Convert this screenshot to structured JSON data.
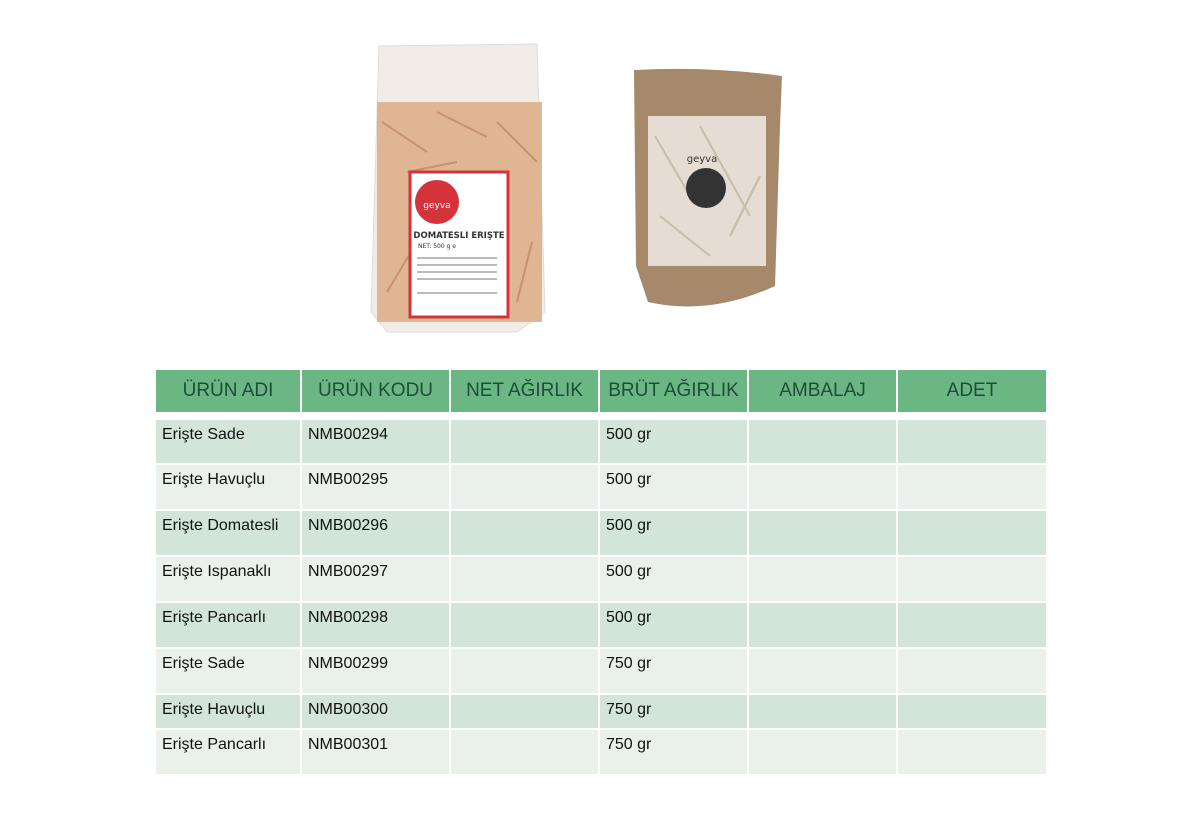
{
  "images": [
    {
      "name": "Domatesli erişte paketi",
      "label": "DOMATESLI ERIŞTE",
      "brand": "geyva",
      "net": "NET: 500 g e"
    },
    {
      "name": "Kraft erişte paketi",
      "brand": "geyva"
    }
  ],
  "table": {
    "headers": [
      "ÜRÜN ADI",
      "ÜRÜN KODU",
      "NET AĞIRLIK",
      "BRÜT AĞIRLIK",
      "AMBALAJ",
      "ADET"
    ],
    "rows": [
      {
        "name": "Erişte Sade",
        "code": "NMB00294",
        "net": "",
        "gross": "500 gr",
        "pack": "",
        "qty": ""
      },
      {
        "name": "Erişte Havuçlu",
        "code": "NMB00295",
        "net": "",
        "gross": "500 gr",
        "pack": "",
        "qty": ""
      },
      {
        "name": "Erişte Domatesli",
        "code": "NMB00296",
        "net": "",
        "gross": "500 gr",
        "pack": "",
        "qty": ""
      },
      {
        "name": "Erişte Ispanaklı",
        "code": "NMB00297",
        "net": "",
        "gross": "500 gr",
        "pack": "",
        "qty": ""
      },
      {
        "name": "Erişte Pancarlı",
        "code": "NMB00298",
        "net": "",
        "gross": "500 gr",
        "pack": "",
        "qty": ""
      },
      {
        "name": "Erişte Sade",
        "code": "NMB00299",
        "net": "",
        "gross": "750 gr",
        "pack": "",
        "qty": ""
      },
      {
        "name": "Erişte Havuçlu",
        "code": "NMB00300",
        "net": "",
        "gross": "750 gr",
        "pack": "",
        "qty": ""
      },
      {
        "name": "Erişte Pancarlı",
        "code": "NMB00301",
        "net": "",
        "gross": "750 gr",
        "pack": "",
        "qty": ""
      }
    ]
  },
  "colors": {
    "header": "#6bb784",
    "header_text": "#1e4d3a",
    "row_dark": "#d3e5d8",
    "row_light": "#e9f1ea"
  }
}
